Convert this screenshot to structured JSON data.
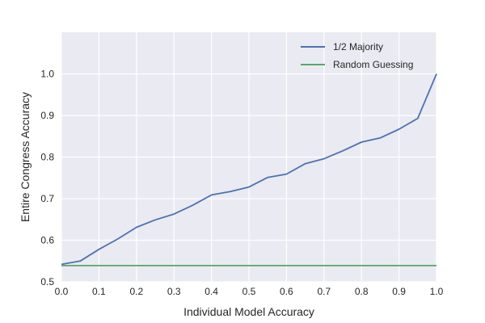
{
  "chart_data": {
    "type": "line",
    "title": "",
    "xlabel": "Individual Model Accuracy",
    "ylabel": "Entire Congress Accuracy",
    "xlim": [
      0.0,
      1.0
    ],
    "ylim": [
      0.5,
      1.1
    ],
    "x_ticks": [
      "0.0",
      "0.1",
      "0.2",
      "0.3",
      "0.4",
      "0.5",
      "0.6",
      "0.7",
      "0.8",
      "0.9",
      "1.0"
    ],
    "x_tick_values": [
      0.0,
      0.1,
      0.2,
      0.3,
      0.4,
      0.5,
      0.6,
      0.7,
      0.8,
      0.9,
      1.0
    ],
    "y_ticks": [
      "0.5",
      "0.6",
      "0.7",
      "0.8",
      "0.9",
      "1.0"
    ],
    "y_tick_values": [
      0.5,
      0.6,
      0.7,
      0.8,
      0.9,
      1.0
    ],
    "grid": true,
    "legend_position": "top-right",
    "background_color": "#eaeaf2",
    "x": [
      0.0,
      0.05,
      0.1,
      0.15,
      0.2,
      0.25,
      0.3,
      0.35,
      0.4,
      0.45,
      0.5,
      0.55,
      0.6,
      0.65,
      0.7,
      0.75,
      0.8,
      0.85,
      0.9,
      0.95,
      1.0
    ],
    "series": [
      {
        "name": "1/2 Majority",
        "color": "#4c72b0",
        "values": [
          0.542,
          0.55,
          0.578,
          0.603,
          0.631,
          0.649,
          0.663,
          0.684,
          0.709,
          0.717,
          0.728,
          0.751,
          0.759,
          0.784,
          0.796,
          0.815,
          0.836,
          0.846,
          0.867,
          0.893,
          1.0
        ]
      },
      {
        "name": "Random Guessing",
        "color": "#55a868",
        "values": [
          0.539,
          0.539,
          0.539,
          0.539,
          0.539,
          0.539,
          0.539,
          0.539,
          0.539,
          0.539,
          0.539,
          0.539,
          0.539,
          0.539,
          0.539,
          0.539,
          0.539,
          0.539,
          0.539,
          0.539,
          0.539
        ]
      }
    ]
  }
}
